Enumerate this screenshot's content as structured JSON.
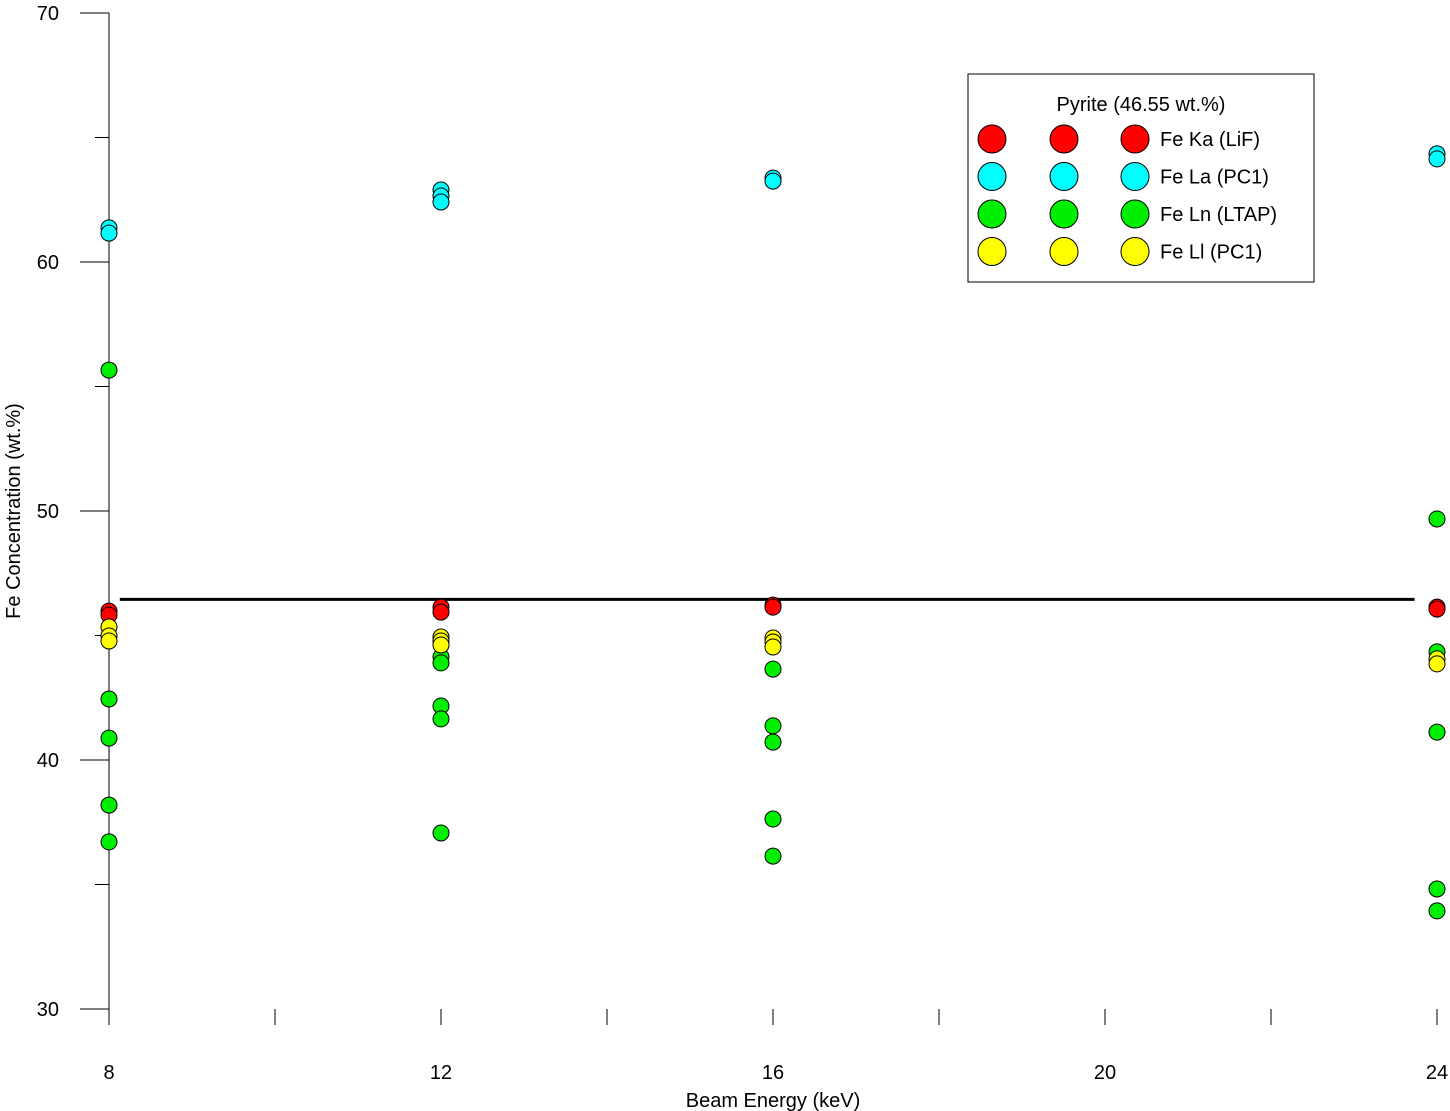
{
  "chart_data": {
    "type": "scatter",
    "title": "",
    "xlabel": "Beam Energy (keV)",
    "ylabel": "Fe Concentration (wt.%)",
    "xlim": [
      8,
      24
    ],
    "ylim": [
      30,
      70
    ],
    "xticks": [
      8,
      12,
      16,
      20,
      24
    ],
    "xminor": [
      10,
      14,
      18,
      22
    ],
    "yticks": [
      30,
      40,
      50,
      60,
      70
    ],
    "yminor": [
      35,
      45,
      55,
      65
    ],
    "grid": false,
    "legend": {
      "title": "Pyrite (46.55 wt.%)",
      "placement": "top-right"
    },
    "reference_line": {
      "y": 46.45,
      "x": [
        8.13,
        23.73
      ],
      "color": "#000000"
    },
    "series": [
      {
        "name": "Fe Ka (LiF)",
        "color": "#ff0000",
        "points": [
          [
            8,
            45.98
          ],
          [
            8,
            45.82
          ],
          [
            12,
            46.14
          ],
          [
            12,
            45.94
          ],
          [
            16,
            46.22
          ],
          [
            16,
            46.14
          ],
          [
            24,
            46.14
          ],
          [
            24,
            46.06
          ]
        ]
      },
      {
        "name": "Fe La (PC1)",
        "color": "#00ffff",
        "points": [
          [
            8,
            61.37
          ],
          [
            8,
            61.16
          ],
          [
            12,
            62.89
          ],
          [
            12,
            62.65
          ],
          [
            12,
            62.41
          ],
          [
            16,
            63.37
          ],
          [
            16,
            63.25
          ],
          [
            24,
            64.34
          ],
          [
            24,
            64.14
          ]
        ]
      },
      {
        "name": "Fe Ln (LTAP)",
        "color": "#00ee00",
        "points": [
          [
            8,
            55.66
          ],
          [
            8,
            42.45
          ],
          [
            8,
            40.88
          ],
          [
            8,
            38.19
          ],
          [
            8,
            36.71
          ],
          [
            12,
            44.14
          ],
          [
            12,
            43.9
          ],
          [
            12,
            42.17
          ],
          [
            12,
            41.65
          ],
          [
            12,
            37.07
          ],
          [
            16,
            43.65
          ],
          [
            16,
            41.37
          ],
          [
            16,
            40.72
          ],
          [
            16,
            37.63
          ],
          [
            16,
            36.14
          ],
          [
            24,
            49.68
          ],
          [
            24,
            44.34
          ],
          [
            24,
            41.12
          ],
          [
            24,
            34.82
          ],
          [
            24,
            33.94
          ]
        ]
      },
      {
        "name": "Fe Ll (PC1)",
        "color": "#ffff00",
        "points": [
          [
            8,
            45.34
          ],
          [
            8,
            44.98
          ],
          [
            8,
            44.78
          ],
          [
            12,
            44.94
          ],
          [
            12,
            44.78
          ],
          [
            12,
            44.62
          ],
          [
            16,
            44.9
          ],
          [
            16,
            44.74
          ],
          [
            16,
            44.54
          ],
          [
            24,
            44.06
          ],
          [
            24,
            43.86
          ]
        ]
      }
    ]
  }
}
